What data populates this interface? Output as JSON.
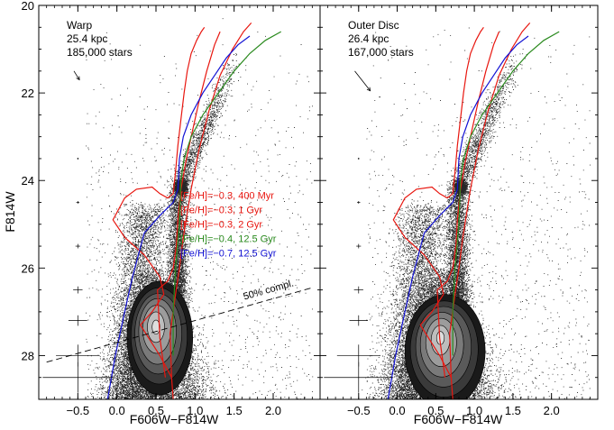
{
  "figure": {
    "ylabel": "F814W",
    "xlabel": "F606W−F814W",
    "colors": {
      "red": "#e8160f",
      "green": "#2a8a1e",
      "blue": "#1212d4",
      "axis": "#000000",
      "density": [
        "#1a1a1a",
        "#3a3a3a",
        "#5a5a5a",
        "#7a7a7a",
        "#9c9c9c",
        "#bdbdbd",
        "#dedede"
      ]
    }
  },
  "chart_data": [
    {
      "type": "scatter",
      "panel": "left",
      "title": "Warp",
      "info": [
        "Warp",
        "25.4 kpc",
        "185,000 stars"
      ],
      "xlabel": "F606W−F814W",
      "ylabel": "F814W",
      "xlim": [
        -1.0,
        2.6
      ],
      "ylim": [
        29.0,
        20.0
      ],
      "x_ticks": [
        "−0.5",
        "0.0",
        "0.5",
        "1.0",
        "1.5",
        "2.0"
      ],
      "x_tick_values": [
        -0.5,
        0.0,
        0.5,
        1.0,
        1.5,
        2.0
      ],
      "y_ticks": [
        "20",
        "22",
        "24",
        "26",
        "28"
      ],
      "y_tick_values": [
        20,
        22,
        24,
        26,
        28
      ],
      "legend": [
        {
          "label": "[Fe/H]=−0.3, 400 Myr",
          "color": "red"
        },
        {
          "label": "[Fe/H]=−0.3, 1 Gyr",
          "color": "red"
        },
        {
          "label": "[Fe/H]=−0.3, 2 Gyr",
          "color": "red"
        },
        {
          "label": "[Fe/H]=−0.4, 12.5 Gyr",
          "color": "green"
        },
        {
          "label": "[Fe/H]=−0.7, 12.5 Gyr",
          "color": "blue"
        }
      ],
      "completeness_label": "50% compl.",
      "completeness_line": {
        "x": [
          -0.9,
          2.5
        ],
        "y": [
          28.15,
          26.45
        ]
      },
      "reddening_arrow": {
        "x": [
          -0.55,
          -0.48
        ],
        "y": [
          21.5,
          21.7
        ]
      },
      "error_bars": [
        {
          "y": 23.5,
          "xerr": 0.01,
          "yerr": 0.02
        },
        {
          "y": 24.5,
          "xerr": 0.02,
          "yerr": 0.03
        },
        {
          "y": 25.5,
          "xerr": 0.03,
          "yerr": 0.05
        },
        {
          "y": 26.5,
          "xerr": 0.06,
          "yerr": 0.08
        },
        {
          "y": 27.2,
          "xerr": 0.12,
          "yerr": 0.12
        },
        {
          "y": 28.0,
          "xerr": 0.28,
          "yerr": 0.25
        },
        {
          "y": 28.5,
          "xerr": 0.45,
          "yerr": 0.35
        }
      ],
      "isochrones": [
        {
          "color": "red",
          "x": [
            0.72,
            0.7,
            0.55,
            0.3,
            0.45,
            0.6,
            0.55,
            0.35,
            0.1,
            -0.05,
            0.1,
            0.25,
            0.45,
            0.55,
            0.65,
            0.72,
            0.75,
            0.78,
            0.82,
            0.86,
            0.9,
            0.95,
            1.02,
            1.08,
            1.12
          ],
          "y": [
            29.0,
            28.5,
            28.0,
            27.3,
            27.0,
            26.6,
            26.2,
            25.7,
            25.3,
            24.9,
            24.4,
            24.2,
            24.15,
            24.3,
            24.4,
            24.3,
            23.8,
            23.2,
            22.6,
            22.0,
            21.5,
            21.1,
            20.8,
            20.6,
            20.5
          ]
        },
        {
          "color": "red",
          "x": [
            0.62,
            0.55,
            0.52,
            0.65,
            0.72,
            0.76,
            0.78,
            0.82,
            0.88,
            0.95,
            1.05,
            1.15,
            1.25,
            1.32
          ],
          "y": [
            28.5,
            27.6,
            26.5,
            26.3,
            26.0,
            25.5,
            24.9,
            24.2,
            23.6,
            23.0,
            22.2,
            21.5,
            20.9,
            20.6
          ]
        },
        {
          "color": "red",
          "x": [
            0.7,
            0.68,
            0.75,
            0.8,
            0.85,
            0.95,
            1.05,
            1.18,
            1.32,
            1.48,
            1.62,
            1.72
          ],
          "y": [
            28.5,
            27.5,
            26.6,
            26.0,
            25.3,
            24.2,
            23.3,
            22.4,
            21.6,
            21.0,
            20.6,
            20.4
          ]
        },
        {
          "color": "green",
          "x": [
            0.72,
            0.72,
            0.75,
            0.8,
            0.82,
            0.86,
            0.95,
            1.1,
            1.3,
            1.5,
            1.7,
            1.9,
            2.1
          ],
          "y": [
            28.0,
            27.0,
            26.0,
            25.0,
            24.0,
            23.5,
            23.0,
            22.5,
            22.0,
            21.5,
            21.1,
            20.8,
            20.6
          ]
        },
        {
          "color": "blue",
          "x": [
            -0.12,
            -0.02,
            0.1,
            0.2,
            0.35,
            0.55,
            0.72,
            0.78,
            0.8,
            0.85,
            0.95,
            1.1,
            1.25,
            1.4,
            1.55,
            1.7
          ],
          "y": [
            29.0,
            28.0,
            27.0,
            26.2,
            25.2,
            24.8,
            24.5,
            24.2,
            23.5,
            23.0,
            22.5,
            22.0,
            21.6,
            21.2,
            20.9,
            20.7
          ]
        }
      ],
      "density_contours": [
        {
          "cx": 0.55,
          "cy": 27.6,
          "rx": 0.42,
          "ry": 1.3
        },
        {
          "cx": 0.54,
          "cy": 27.55,
          "rx": 0.36,
          "ry": 1.1
        },
        {
          "cx": 0.53,
          "cy": 27.5,
          "rx": 0.3,
          "ry": 0.92
        },
        {
          "cx": 0.52,
          "cy": 27.45,
          "rx": 0.24,
          "ry": 0.75
        },
        {
          "cx": 0.51,
          "cy": 27.4,
          "rx": 0.18,
          "ry": 0.55
        },
        {
          "cx": 0.5,
          "cy": 27.35,
          "rx": 0.11,
          "ry": 0.35
        },
        {
          "cx": 0.5,
          "cy": 27.35,
          "rx": 0.05,
          "ry": 0.16
        }
      ]
    },
    {
      "type": "scatter",
      "panel": "right",
      "title": "Outer Disc",
      "info": [
        "Outer Disc",
        "26.4 kpc",
        "167,000 stars"
      ],
      "xlabel": "F606W−F814W",
      "xlim": [
        -1.0,
        2.6
      ],
      "ylim": [
        29.0,
        20.0
      ],
      "x_ticks": [
        "−0.5",
        "0.0",
        "0.5",
        "1.0",
        "1.5",
        "2.0"
      ],
      "x_tick_values": [
        -0.5,
        0.0,
        0.5,
        1.0,
        1.5,
        2.0
      ],
      "reddening_arrow": {
        "x": [
          -0.55,
          -0.35
        ],
        "y": [
          21.5,
          21.95
        ]
      },
      "error_bars": [
        {
          "y": 23.5,
          "xerr": 0.01,
          "yerr": 0.02
        },
        {
          "y": 24.5,
          "xerr": 0.02,
          "yerr": 0.03
        },
        {
          "y": 25.5,
          "xerr": 0.03,
          "yerr": 0.05
        },
        {
          "y": 26.5,
          "xerr": 0.06,
          "yerr": 0.08
        },
        {
          "y": 27.2,
          "xerr": 0.12,
          "yerr": 0.12
        },
        {
          "y": 28.0,
          "xerr": 0.28,
          "yerr": 0.25
        },
        {
          "y": 28.5,
          "xerr": 0.45,
          "yerr": 0.35
        }
      ],
      "isochrones": [
        {
          "color": "red",
          "x": [
            0.72,
            0.7,
            0.55,
            0.3,
            0.45,
            0.6,
            0.55,
            0.35,
            0.1,
            -0.05,
            0.1,
            0.25,
            0.45,
            0.55,
            0.65,
            0.72,
            0.75,
            0.78,
            0.82,
            0.86,
            0.9,
            0.95,
            1.02,
            1.08,
            1.12
          ],
          "y": [
            29.0,
            28.5,
            28.0,
            27.3,
            27.0,
            26.6,
            26.2,
            25.7,
            25.3,
            24.9,
            24.4,
            24.2,
            24.15,
            24.3,
            24.4,
            24.3,
            23.8,
            23.2,
            22.6,
            22.0,
            21.5,
            21.1,
            20.8,
            20.6,
            20.5
          ]
        },
        {
          "color": "red",
          "x": [
            0.62,
            0.55,
            0.52,
            0.65,
            0.72,
            0.76,
            0.78,
            0.82,
            0.88,
            0.95,
            1.05,
            1.15,
            1.25,
            1.32
          ],
          "y": [
            28.5,
            27.6,
            26.5,
            26.3,
            26.0,
            25.5,
            24.9,
            24.2,
            23.6,
            23.0,
            22.2,
            21.5,
            20.9,
            20.6
          ]
        },
        {
          "color": "red",
          "x": [
            0.7,
            0.68,
            0.75,
            0.8,
            0.85,
            0.95,
            1.05,
            1.18,
            1.32,
            1.48,
            1.62,
            1.72
          ],
          "y": [
            28.5,
            27.5,
            26.6,
            26.0,
            25.3,
            24.2,
            23.3,
            22.4,
            21.6,
            21.0,
            20.6,
            20.4
          ]
        },
        {
          "color": "green",
          "x": [
            0.72,
            0.72,
            0.75,
            0.8,
            0.82,
            0.86,
            0.95,
            1.1,
            1.3,
            1.5,
            1.7,
            1.9,
            2.1
          ],
          "y": [
            28.0,
            27.0,
            26.0,
            25.0,
            24.0,
            23.5,
            23.0,
            22.5,
            22.0,
            21.5,
            21.1,
            20.8,
            20.6
          ]
        },
        {
          "color": "blue",
          "x": [
            -0.12,
            -0.02,
            0.1,
            0.2,
            0.35,
            0.55,
            0.72,
            0.78,
            0.8,
            0.85,
            0.95,
            1.1,
            1.25,
            1.4,
            1.55,
            1.7
          ],
          "y": [
            29.0,
            28.0,
            27.0,
            26.2,
            25.2,
            24.8,
            24.5,
            24.2,
            23.5,
            23.0,
            22.5,
            22.0,
            21.6,
            21.2,
            20.9,
            20.7
          ]
        }
      ],
      "density_contours": [
        {
          "cx": 0.62,
          "cy": 27.9,
          "rx": 0.52,
          "ry": 1.3
        },
        {
          "cx": 0.61,
          "cy": 27.85,
          "rx": 0.44,
          "ry": 1.1
        },
        {
          "cx": 0.6,
          "cy": 27.8,
          "rx": 0.36,
          "ry": 0.92
        },
        {
          "cx": 0.58,
          "cy": 27.75,
          "rx": 0.28,
          "ry": 0.74
        },
        {
          "cx": 0.57,
          "cy": 27.7,
          "rx": 0.2,
          "ry": 0.55
        },
        {
          "cx": 0.56,
          "cy": 27.65,
          "rx": 0.12,
          "ry": 0.34
        },
        {
          "cx": 0.56,
          "cy": 27.6,
          "rx": 0.05,
          "ry": 0.15
        }
      ]
    }
  ]
}
